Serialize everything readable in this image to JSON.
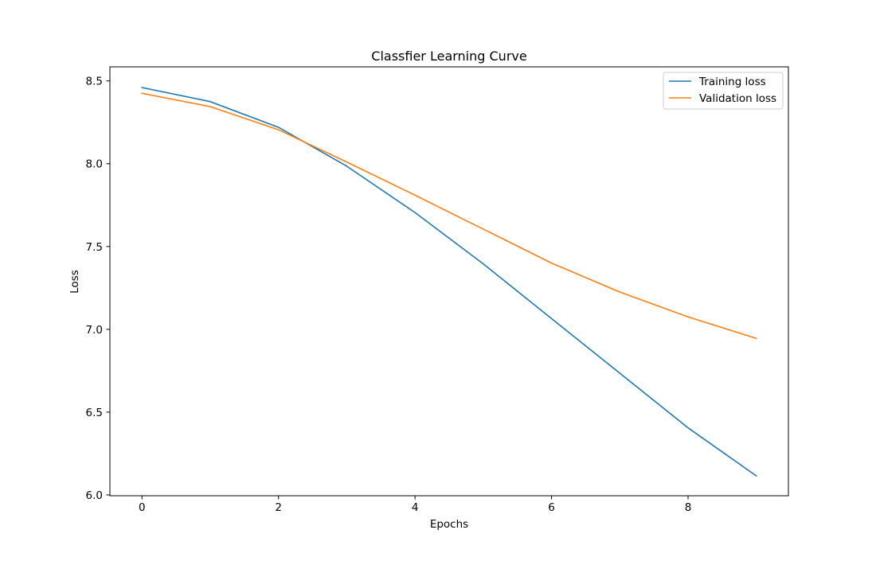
{
  "chart_data": {
    "type": "line",
    "title": "Classfier Learning Curve",
    "xlabel": "Epochs",
    "ylabel": "Loss",
    "x": [
      0,
      1,
      2,
      3,
      4,
      5,
      6,
      7,
      8,
      9
    ],
    "xlim": [
      -0.47,
      9.47
    ],
    "ylim": [
      5.995,
      8.585
    ],
    "xticks": [
      0,
      2,
      4,
      6,
      8
    ],
    "yticks": [
      6.0,
      6.5,
      7.0,
      7.5,
      8.0,
      8.5
    ],
    "xtick_labels": [
      "0",
      "2",
      "4",
      "6",
      "8"
    ],
    "ytick_labels": [
      "6.0",
      "6.5",
      "7.0",
      "7.5",
      "8.0",
      "8.5"
    ],
    "grid": false,
    "legend_position": "top-right",
    "series": [
      {
        "name": "Training loss",
        "color": "#1f77b4",
        "values": [
          8.46,
          8.375,
          8.22,
          7.985,
          7.705,
          7.395,
          7.065,
          6.735,
          6.405,
          6.115
        ]
      },
      {
        "name": "Validation loss",
        "color": "#ff7f0e",
        "values": [
          8.425,
          8.345,
          8.205,
          8.01,
          7.81,
          7.605,
          7.4,
          7.225,
          7.075,
          6.945
        ]
      }
    ]
  }
}
